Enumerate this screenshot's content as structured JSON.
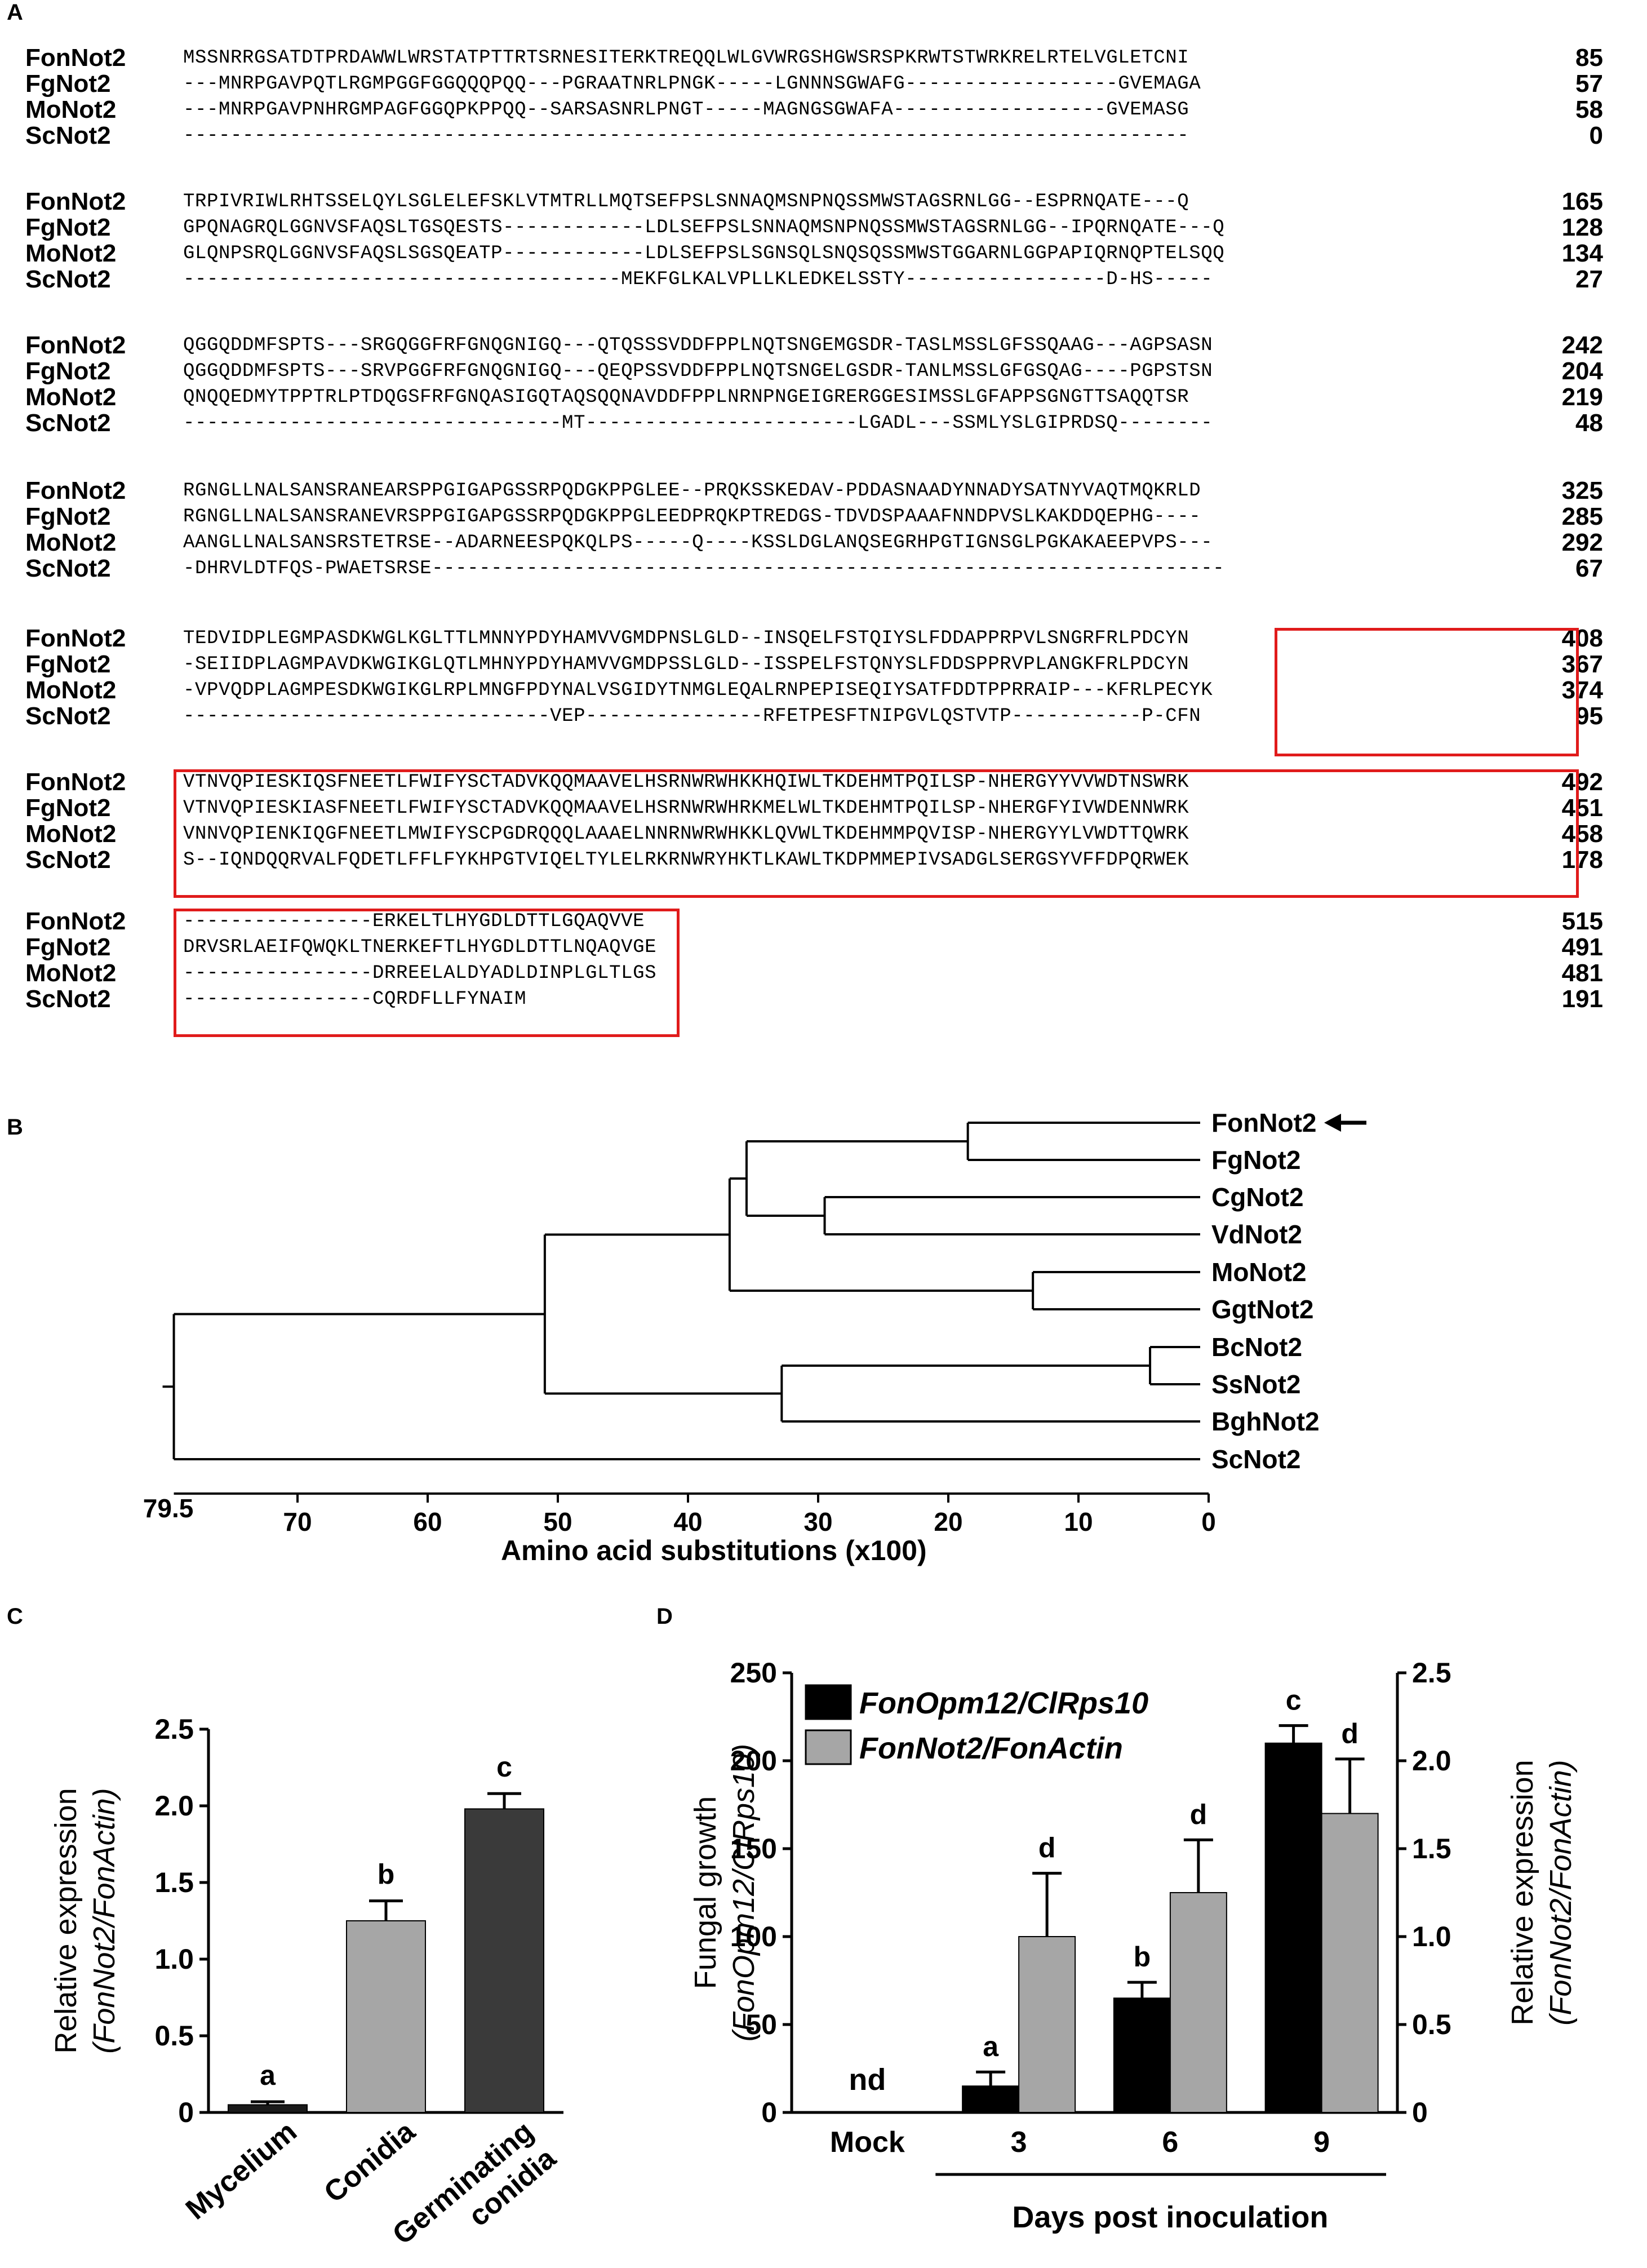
{
  "panels": {
    "A": "A",
    "B": "B",
    "C": "C",
    "D": "D"
  },
  "alignment": {
    "blocks": [
      {
        "rows": [
          {
            "name": "FonNot2",
            "seq": "MSSNRRGSATDTPRDAWWLWRSTATPTTRTSRNESITERKTREQQLWLGVWRGSHGWSRSPKRWTSTWRKRELRTELVGLETCNI",
            "num": "85"
          },
          {
            "name": "FgNot2",
            "seq": "---MNRPGAVPQTLRGMPGGFGGQQQPQQ---PGRAATNRLPNGK-----LGNNNSGWAFG------------------GVEMAGA",
            "num": "57"
          },
          {
            "name": "MoNot2",
            "seq": "---MNRPGAVPNHRGMPAGFGGQPKPPQQ--SARSASNRLPNGT-----MAGNGSGWAFA------------------GVEMASG",
            "num": "58"
          },
          {
            "name": "ScNot2",
            "seq": "-------------------------------------------------------------------------------------",
            "num": "0"
          }
        ]
      },
      {
        "rows": [
          {
            "name": "FonNot2",
            "seq": "TRPIVRIWLRHTSSELQYLSGLELEFSKLVTMTRLLMQTSEFPSLSNNAQMSNPNQSSMWSTAGSRNLGG--ESPRNQATE---Q",
            "num": "165"
          },
          {
            "name": "FgNot2",
            "seq": "GPQNAGRQLGGNVSFAQSLTGSQESTS------------LDLSEFPSLSNNAQMSNPNQSSMWSTAGSRNLGG--IPQRNQATE---Q",
            "num": "128"
          },
          {
            "name": "MoNot2",
            "seq": "GLQNPSRQLGGNVSFAQSLSGSQEATP------------LDLSEFPSLSGNSQLSNQSQSSMWSTGGARNLGGPAPIQRNQPTELSQQ",
            "num": "134"
          },
          {
            "name": "ScNot2",
            "seq": "-------------------------------------MEKFGLKALVPLLKLEDKELSSTY-----------------D-HS-----",
            "num": "27"
          }
        ]
      },
      {
        "rows": [
          {
            "name": "FonNot2",
            "seq": "QGGQDDMFSPTS---SRGQGGFRFGNQGNIGQ---QTQSSSVDDFPPLNQTSNGEMGSDR-TASLMSSLGFSSQAAG---AGPSASN",
            "num": "242"
          },
          {
            "name": "FgNot2",
            "seq": "QGGQDDMFSPTS---SRVPGGFRFGNQGNIGQ---QEQPSSVDDFPPLNQTSNGELGSDR-TANLMSSLGFGSQAG----PGPSTSN",
            "num": "204"
          },
          {
            "name": "MoNot2",
            "seq": "QNQQEDMYTPPTRLPTDQGSFRFGNQASIGQTAQSQQNAVDDFPPLNRNPNGEIGRERGGESIMSSLGFAPPSGNGTTSAQQTSR",
            "num": "219"
          },
          {
            "name": "ScNot2",
            "seq": "--------------------------------MT-----------------------LGADL---SSMLYSLGIPRDSQ--------",
            "num": "48"
          }
        ]
      },
      {
        "rows": [
          {
            "name": "FonNot2",
            "seq": "RGNGLLNALSANSRANEARSPPGIGAPGSSRPQDGKPPGLEE--PRQKSSKEDAV-PDDASNAADYNNADYSATNYVAQTMQKRLD",
            "num": "325"
          },
          {
            "name": "FgNot2",
            "seq": "RGNGLLNALSANSRANEVRSPPGIGAPGSSRPQDGKPPGLEEDPRQKPTREDGS-TDVDSPAAAFNNDPVSLKAKDDQEPHG----",
            "num": "285"
          },
          {
            "name": "MoNot2",
            "seq": "AANGLLNALSANSRSTETRSE--ADARNEESPQKQLPS-----Q----KSSLDGLANQSEGRHPGTIGNSGLPGKAKAEEPVPS---",
            "num": "292"
          },
          {
            "name": "ScNot2",
            "seq": "-DHRVLDTFQS-PWAETSRSE-------------------------------------------------------------------",
            "num": "67"
          }
        ]
      },
      {
        "rows": [
          {
            "name": "FonNot2",
            "seq": "TEDVIDPLEGMPASDKWGLKGLTTLMNNYPDYHAMVVGMDPNSLGLD--INSQELFSTQIYSLFDDAPPRPVLSNGRFRLPDCYN",
            "num": "408"
          },
          {
            "name": "FgNot2",
            "seq": "-SEIIDPLAGMPAVDKWGIKGLQTLMHNYPDYHAMVVGMDPSSLGLD--ISSPELFSTQNYSLFDDSPPRVPLANGKFRLPDCYN",
            "num": "367"
          },
          {
            "name": "MoNot2",
            "seq": "-VPVQDPLAGMPESDKWGIKGLRPLMNGFPDYNALVSGIDYTNMGLEQALRNPEPISEQIYSATFDDTPPRRAIP---KFRLPECYK",
            "num": "374"
          },
          {
            "name": "ScNot2",
            "seq": "-------------------------------VEP---------------RFETPESFTNIPGVLQSTVTP-----------P-CFN",
            "num": "95"
          }
        ]
      },
      {
        "rows": [
          {
            "name": "FonNot2",
            "seq": "VTNVQPIESKIQSFNEETLFWIFYSCTADVKQQMAAVELHSRNWRWHKKHQIWLTKDEHMTPQILSP-NHERGYYVVWDTNSWRK",
            "num": "492"
          },
          {
            "name": "FgNot2",
            "seq": "VTNVQPIESKIASFNEETLFWIFYSCTADVKQQMAAVELHSRNWRWHRKMELWLTKDEHMTPQILSP-NHERGFYIVWDENNWRK",
            "num": "451"
          },
          {
            "name": "MoNot2",
            "seq": "VNNVQPIENKIQGFNEETLMWIFYSCPGDRQQQLAAAELNNRNWRWHKKLQVWLTKDEHMMPQVISP-NHERGYYLVWDTTQWRK",
            "num": "458"
          },
          {
            "name": "ScNot2",
            "seq": "S--IQNDQQRVALFQDETLFFLFYKHPGTVIQELTYLELRKRNWRYHKTLKAWLTKDPMMEPIVSADGLSERGSYVFFDPQRWEK",
            "num": "178"
          }
        ]
      },
      {
        "rows": [
          {
            "name": "FonNot2",
            "seq": "----------------ERKELTLHYGDLDTTLGQAQVVE",
            "num": "515"
          },
          {
            "name": "FgNot2",
            "seq": "DRVSRLAEIFQWQKLTNERKEFTLHYGDLDTTLNQAQVGE",
            "num": "491"
          },
          {
            "name": "MoNot2",
            "seq": "----------------DRREELALDYADLDINPLGLTLGS",
            "num": "481"
          },
          {
            "name": "ScNot2",
            "seq": "----------------CQRDFLLFYNAIM",
            "num": "191"
          }
        ]
      }
    ]
  },
  "tree": {
    "taxa": [
      "FonNot2",
      "FgNot2",
      "CgNot2",
      "VdNot2",
      "MoNot2",
      "GgtNot2",
      "BcNot2",
      "SsNot2",
      "BghNot2",
      "ScNot2"
    ],
    "highlighted": "FonNot2",
    "axis_max_label": "79.5",
    "axis_ticks": [
      "70",
      "60",
      "50",
      "40",
      "30",
      "20",
      "10",
      "0"
    ],
    "axis_title": "Amino acid substitutions (x100)"
  },
  "chart_data": [
    {
      "type": "bar",
      "panel": "C",
      "categories": [
        "Mycelium",
        "Conidia",
        "Germinating conidia"
      ],
      "values": [
        0.05,
        1.25,
        1.98
      ],
      "errors": [
        0.02,
        0.13,
        0.1
      ],
      "letters": [
        "a",
        "b",
        "c"
      ],
      "colors": [
        "#1a1a1a",
        "#a6a6a6",
        "#3a3a3a"
      ],
      "ylabel_plain": "Relative expression",
      "ylabel_italic": "(FonNot2/FonActin)",
      "ylim": [
        0,
        2.5
      ],
      "yticks": [
        "0",
        "0.5",
        "1.0",
        "1.5",
        "2.0",
        "2.5"
      ]
    },
    {
      "type": "bar",
      "panel": "D",
      "categories": [
        "Mock",
        "3",
        "6",
        "9"
      ],
      "series": [
        {
          "name": "FonOpm12/ClRps10",
          "axis": "left",
          "color": "#000000",
          "values": [
            0,
            15,
            65,
            210
          ],
          "errors": [
            0,
            8,
            9,
            10
          ],
          "letters": [
            "",
            "a",
            "b",
            "c"
          ]
        },
        {
          "name": "FonNot2/FonActin",
          "axis": "right",
          "color": "#a6a6a6",
          "values": [
            0,
            1.0,
            1.25,
            1.7
          ],
          "errors": [
            0,
            0.36,
            0.3,
            0.31
          ],
          "letters": [
            "",
            "d",
            "d",
            "d"
          ]
        }
      ],
      "nd_label": "nd",
      "ylabel_left_plain": "Fungal growth",
      "ylabel_left_italic": "(FonOpm12/ClRps10)",
      "ylabel_right_plain": "Relative expression",
      "ylabel_right_italic": "(FonNot2/FonActin)",
      "ylim_left": [
        0,
        250
      ],
      "ylim_right": [
        0,
        2.5
      ],
      "yticks_left": [
        "0",
        "50",
        "100",
        "150",
        "200",
        "250"
      ],
      "yticks_right": [
        "0",
        "0.5",
        "1.0",
        "1.5",
        "2.0",
        "2.5"
      ],
      "xlabel": "Days post inoculation"
    }
  ]
}
